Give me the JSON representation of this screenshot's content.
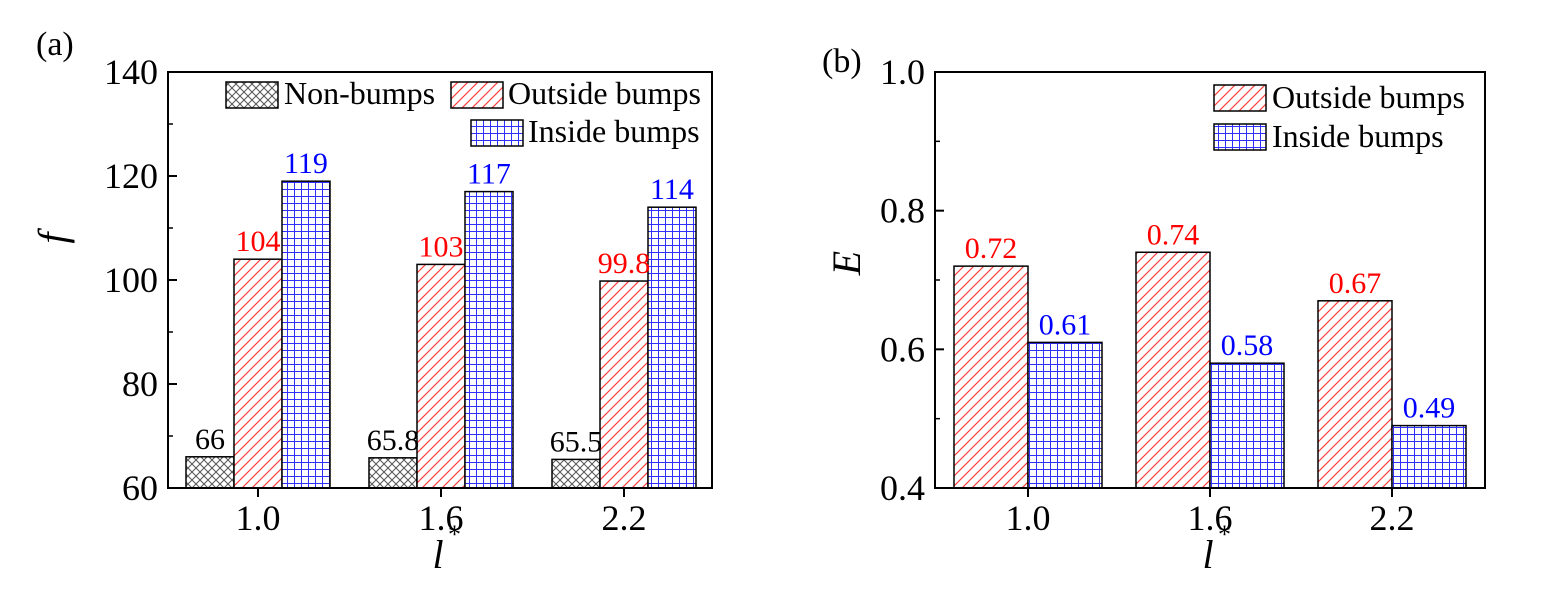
{
  "colors": {
    "non_bumps": "#000000",
    "outside_bumps": "#ff0000",
    "inside_bumps": "#0000ff",
    "axis": "#000000"
  },
  "chart_data": [
    {
      "panel_label": "(a)",
      "type": "bar",
      "categories": [
        "1.0",
        "1.6",
        "2.2"
      ],
      "series": [
        {
          "name": "Non-bumps",
          "values": [
            66,
            65.8,
            65.5
          ],
          "labels": [
            "66",
            "65.8",
            "65.5"
          ],
          "pattern": "crosshatch",
          "color": "#000000"
        },
        {
          "name": "Outside bumps",
          "values": [
            104,
            103,
            99.8
          ],
          "labels": [
            "104",
            "103",
            "99.8"
          ],
          "pattern": "diagonal",
          "color": "#ff0000"
        },
        {
          "name": "Inside bumps",
          "values": [
            119,
            117,
            114
          ],
          "labels": [
            "119",
            "117",
            "114"
          ],
          "pattern": "grid",
          "color": "#0000ff"
        }
      ],
      "xlabel": "l",
      "xlabel_sup": "*",
      "ylabel": "f",
      "ylim": [
        60,
        140
      ],
      "yticks": [
        "60",
        "80",
        "100",
        "120",
        "140"
      ],
      "legend_position": "top-right",
      "grid": false
    },
    {
      "panel_label": "(b)",
      "type": "bar",
      "categories": [
        "1.0",
        "1.6",
        "2.2"
      ],
      "series": [
        {
          "name": "Outside bumps",
          "values": [
            0.72,
            0.74,
            0.67
          ],
          "labels": [
            "0.72",
            "0.74",
            "0.67"
          ],
          "pattern": "diagonal",
          "color": "#ff0000"
        },
        {
          "name": "Inside bumps",
          "values": [
            0.61,
            0.58,
            0.49
          ],
          "labels": [
            "0.61",
            "0.58",
            "0.49"
          ],
          "pattern": "grid",
          "color": "#0000ff"
        }
      ],
      "xlabel": "l",
      "xlabel_sup": "*",
      "ylabel": "E",
      "ylim": [
        0.4,
        1.0
      ],
      "yticks": [
        "0.4",
        "0.6",
        "0.8",
        "1.0"
      ],
      "legend_position": "top-right",
      "grid": false
    }
  ]
}
